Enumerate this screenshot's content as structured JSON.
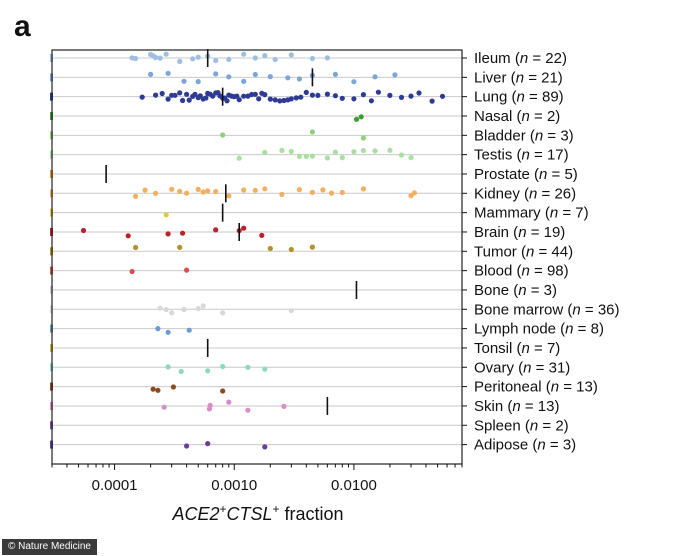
{
  "panel_label": "a",
  "credit": "© Nature Medicine",
  "chart_data": {
    "type": "scatter",
    "xlabel": {
      "italic": "ACE2",
      "sup1": "+",
      "italic2": "CTSL",
      "sup2": "+",
      "tail": " fraction"
    },
    "x_scale": "log",
    "xlim": [
      3e-05,
      0.08
    ],
    "x_ticks": [
      {
        "value": 0.0001,
        "label": "0.0001"
      },
      {
        "value": 0.001,
        "label": "0.0010"
      },
      {
        "value": 0.01,
        "label": "0.0100"
      }
    ],
    "grid": "horizontal",
    "rows": [
      {
        "label": "Ileum",
        "n": 22,
        "color": "#9ebfe3",
        "median": 0.0006,
        "values": [
          0.00014,
          0.00015,
          0.0002,
          0.00021,
          0.00022,
          0.00024,
          0.00027,
          0.00035,
          0.00045,
          0.0005,
          0.0006,
          0.0007,
          0.0009,
          0.0012,
          0.0015,
          0.0018,
          0.0022,
          0.003,
          0.0045,
          0.006
        ]
      },
      {
        "label": "Liver",
        "n": 21,
        "color": "#7ea5d8",
        "median": 0.0045,
        "values": [
          0.0002,
          0.00028,
          0.00038,
          0.0005,
          0.0007,
          0.0009,
          0.0012,
          0.0015,
          0.002,
          0.0028,
          0.0035,
          0.0045,
          0.007,
          0.01,
          0.015,
          0.022
        ]
      },
      {
        "label": "Lung",
        "n": 89,
        "color": "#2e3b94",
        "median": 0.0008,
        "values": [
          0.00017,
          0.00022,
          0.00025,
          0.00028,
          0.0003,
          0.00032,
          0.00035,
          0.00037,
          0.0004,
          0.00042,
          0.00045,
          0.00047,
          0.0005,
          0.00052,
          0.00055,
          0.00058,
          0.0006,
          0.00063,
          0.00066,
          0.0007,
          0.00073,
          0.00076,
          0.0008,
          0.00083,
          0.00087,
          0.0009,
          0.00095,
          0.001,
          0.00105,
          0.0011,
          0.0012,
          0.0013,
          0.0014,
          0.0015,
          0.0016,
          0.0017,
          0.0018,
          0.002,
          0.0022,
          0.0024,
          0.0026,
          0.0028,
          0.003,
          0.0033,
          0.0036,
          0.004,
          0.0045,
          0.005,
          0.006,
          0.007,
          0.008,
          0.01,
          0.012,
          0.014,
          0.016,
          0.02,
          0.025,
          0.03,
          0.035,
          0.045,
          0.055
        ]
      },
      {
        "label": "Nasal",
        "n": 2,
        "color": "#3e9c33",
        "median": null,
        "values": [
          0.0105,
          0.0115
        ]
      },
      {
        "label": "Bladder",
        "n": 3,
        "color": "#8fd17a",
        "median": null,
        "values": [
          0.0008,
          0.0045,
          0.012
        ]
      },
      {
        "label": "Testis",
        "n": 17,
        "color": "#a8e0a0",
        "median": null,
        "values": [
          0.0011,
          0.0018,
          0.0025,
          0.003,
          0.0035,
          0.004,
          0.0045,
          0.006,
          0.007,
          0.008,
          0.01,
          0.012,
          0.015,
          0.02,
          0.025,
          0.03
        ]
      },
      {
        "label": "Prostate",
        "n": 5,
        "color": "#e39a3c",
        "median": 8.5e-05,
        "values": []
      },
      {
        "label": "Kidney",
        "n": 26,
        "color": "#f0b060",
        "median": 0.00085,
        "values": [
          0.00015,
          0.00018,
          0.00022,
          0.0003,
          0.00035,
          0.0004,
          0.0005,
          0.00055,
          0.0006,
          0.0007,
          0.0009,
          0.0012,
          0.0015,
          0.0018,
          0.0025,
          0.0035,
          0.0045,
          0.0055,
          0.0065,
          0.008,
          0.012,
          0.03,
          0.032
        ]
      },
      {
        "label": "Mammary",
        "n": 7,
        "color": "#e8c83c",
        "median": 0.0008,
        "values": [
          0.00027
        ]
      },
      {
        "label": "Brain",
        "n": 19,
        "color": "#b8232a",
        "median": 0.0011,
        "values": [
          5.5e-05,
          0.00013,
          0.00028,
          0.00037,
          0.0007,
          0.0011,
          0.0012,
          0.0017
        ]
      },
      {
        "label": "Tumor",
        "n": 44,
        "color": "#b7902e",
        "median": null,
        "values": [
          0.00015,
          0.00035,
          0.002,
          0.003,
          0.0045
        ]
      },
      {
        "label": "Blood",
        "n": 98,
        "color": "#d95050",
        "median": null,
        "values": [
          0.00014,
          0.0004
        ]
      },
      {
        "label": "Bone",
        "n": 3,
        "color": "#cccccc",
        "median": 0.0105,
        "values": []
      },
      {
        "label": "Bone marrow",
        "n": 36,
        "color": "#d8d8d8",
        "median": null,
        "values": [
          0.00024,
          0.00027,
          0.0003,
          0.00038,
          0.0005,
          0.00055,
          0.0008,
          0.003
        ]
      },
      {
        "label": "Lymph node",
        "n": 8,
        "color": "#6b9ed0",
        "median": null,
        "values": [
          0.00023,
          0.00028,
          0.00042
        ]
      },
      {
        "label": "Tonsil",
        "n": 7,
        "color": "#d2b848",
        "median": 0.0006,
        "values": []
      },
      {
        "label": "Ovary",
        "n": 31,
        "color": "#8fd8c0",
        "median": null,
        "values": [
          0.00028,
          0.00036,
          0.0006,
          0.0008,
          0.0013,
          0.0018
        ]
      },
      {
        "label": "Peritoneal",
        "n": 13,
        "color": "#8a4a20",
        "median": null,
        "values": [
          0.00021,
          0.00023,
          0.00031,
          0.0008
        ]
      },
      {
        "label": "Skin",
        "n": 13,
        "color": "#d98ccc",
        "median": 0.006,
        "values": [
          0.00026,
          0.00062,
          0.00063,
          0.0009,
          0.0013,
          0.0026
        ]
      },
      {
        "label": "Spleen",
        "n": 2,
        "color": "#7b4fa8",
        "median": null,
        "values": []
      },
      {
        "label": "Adipose",
        "n": 3,
        "color": "#6a3d9a",
        "median": null,
        "values": [
          0.0004,
          0.0006,
          0.0018
        ]
      }
    ]
  }
}
